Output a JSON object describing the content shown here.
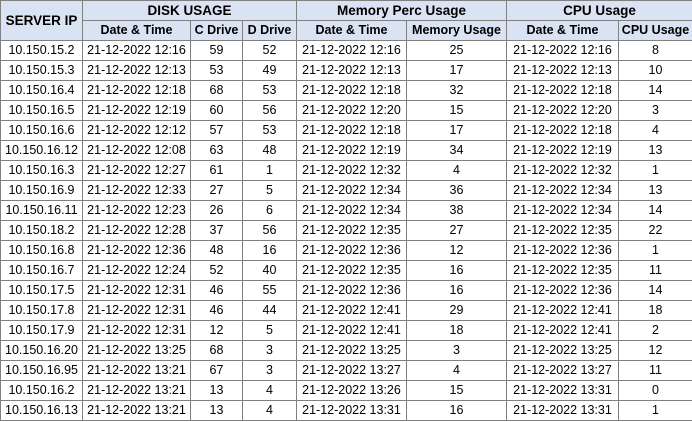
{
  "headers": {
    "server_ip": "SERVER IP",
    "disk_usage": "DISK USAGE",
    "memory_usage": "Memory Perc Usage",
    "cpu_usage": "CPU Usage",
    "date_time": "Date & Time",
    "c_drive": "C Drive",
    "d_drive": "D  Drive",
    "memory_col": "Memory Usage",
    "cpu_col": "CPU Usage"
  },
  "rows": [
    {
      "ip": "10.150.15.2",
      "disk_dt": "21-12-2022 12:16",
      "c": "59",
      "d": "52",
      "mem_dt": "21-12-2022 12:16",
      "mem": "25",
      "cpu_dt": "21-12-2022 12:16",
      "cpu": "8"
    },
    {
      "ip": "10.150.15.3",
      "disk_dt": "21-12-2022 12:13",
      "c": "53",
      "d": "49",
      "mem_dt": "21-12-2022 12:13",
      "mem": "17",
      "cpu_dt": "21-12-2022 12:13",
      "cpu": "10"
    },
    {
      "ip": "10.150.16.4",
      "disk_dt": "21-12-2022 12:18",
      "c": "68",
      "d": "53",
      "mem_dt": "21-12-2022 12:18",
      "mem": "32",
      "cpu_dt": "21-12-2022 12:18",
      "cpu": "14"
    },
    {
      "ip": "10.150.16.5",
      "disk_dt": "21-12-2022 12:19",
      "c": "60",
      "d": "56",
      "mem_dt": "21-12-2022 12:20",
      "mem": "15",
      "cpu_dt": "21-12-2022 12:20",
      "cpu": "3"
    },
    {
      "ip": "10.150.16.6",
      "disk_dt": "21-12-2022 12:12",
      "c": "57",
      "d": "53",
      "mem_dt": "21-12-2022 12:18",
      "mem": "17",
      "cpu_dt": "21-12-2022 12:18",
      "cpu": "4"
    },
    {
      "ip": "10.150.16.12",
      "disk_dt": "21-12-2022 12:08",
      "c": "63",
      "d": "48",
      "mem_dt": "21-12-2022 12:19",
      "mem": "34",
      "cpu_dt": "21-12-2022 12:19",
      "cpu": "13"
    },
    {
      "ip": "10.150.16.3",
      "disk_dt": "21-12-2022 12:27",
      "c": "61",
      "d": "1",
      "mem_dt": "21-12-2022 12:32",
      "mem": "4",
      "cpu_dt": "21-12-2022 12:32",
      "cpu": "1"
    },
    {
      "ip": "10.150.16.9",
      "disk_dt": "21-12-2022 12:33",
      "c": "27",
      "d": "5",
      "mem_dt": "21-12-2022 12:34",
      "mem": "36",
      "cpu_dt": "21-12-2022 12:34",
      "cpu": "13"
    },
    {
      "ip": "10.150.16.11",
      "disk_dt": "21-12-2022 12:23",
      "c": "26",
      "d": "6",
      "mem_dt": "21-12-2022 12:34",
      "mem": "38",
      "cpu_dt": "21-12-2022 12:34",
      "cpu": "14"
    },
    {
      "ip": "10.150.18.2",
      "disk_dt": "21-12-2022 12:28",
      "c": "37",
      "d": "56",
      "mem_dt": "21-12-2022 12:35",
      "mem": "27",
      "cpu_dt": "21-12-2022 12:35",
      "cpu": "22"
    },
    {
      "ip": "10.150.16.8",
      "disk_dt": "21-12-2022 12:36",
      "c": "48",
      "d": "16",
      "mem_dt": "21-12-2022 12:36",
      "mem": "12",
      "cpu_dt": "21-12-2022 12:36",
      "cpu": "1"
    },
    {
      "ip": "10.150.16.7",
      "disk_dt": "21-12-2022 12:24",
      "c": "52",
      "d": "40",
      "mem_dt": "21-12-2022 12:35",
      "mem": "16",
      "cpu_dt": "21-12-2022 12:35",
      "cpu": "11"
    },
    {
      "ip": "10.150.17.5",
      "disk_dt": "21-12-2022 12:31",
      "c": "46",
      "d": "55",
      "mem_dt": "21-12-2022 12:36",
      "mem": "16",
      "cpu_dt": "21-12-2022 12:36",
      "cpu": "14"
    },
    {
      "ip": "10.150.17.8",
      "disk_dt": "21-12-2022 12:31",
      "c": "46",
      "d": "44",
      "mem_dt": "21-12-2022 12:41",
      "mem": "29",
      "cpu_dt": "21-12-2022 12:41",
      "cpu": "18"
    },
    {
      "ip": "10.150.17.9",
      "disk_dt": "21-12-2022 12:31",
      "c": "12",
      "d": "5",
      "mem_dt": "21-12-2022 12:41",
      "mem": "18",
      "cpu_dt": "21-12-2022 12:41",
      "cpu": "2"
    },
    {
      "ip": "10.150.16.20",
      "disk_dt": "21-12-2022 13:25",
      "c": "68",
      "d": "3",
      "mem_dt": "21-12-2022 13:25",
      "mem": "3",
      "cpu_dt": "21-12-2022 13:25",
      "cpu": "12"
    },
    {
      "ip": "10.150.16.95",
      "disk_dt": "21-12-2022 13:21",
      "c": "67",
      "d": "3",
      "mem_dt": "21-12-2022 13:27",
      "mem": "4",
      "cpu_dt": "21-12-2022 13:27",
      "cpu": "11"
    },
    {
      "ip": "10.150.16.2",
      "disk_dt": "21-12-2022 13:21",
      "c": "13",
      "d": "4",
      "mem_dt": "21-12-2022 13:26",
      "mem": "15",
      "cpu_dt": "21-12-2022 13:31",
      "cpu": "0"
    },
    {
      "ip": "10.150.16.13",
      "disk_dt": "21-12-2022 13:21",
      "c": "13",
      "d": "4",
      "mem_dt": "21-12-2022 13:31",
      "mem": "16",
      "cpu_dt": "21-12-2022 13:31",
      "cpu": "1"
    }
  ],
  "colors": {
    "header_bg": "#dae3f3",
    "border": "#808080"
  }
}
